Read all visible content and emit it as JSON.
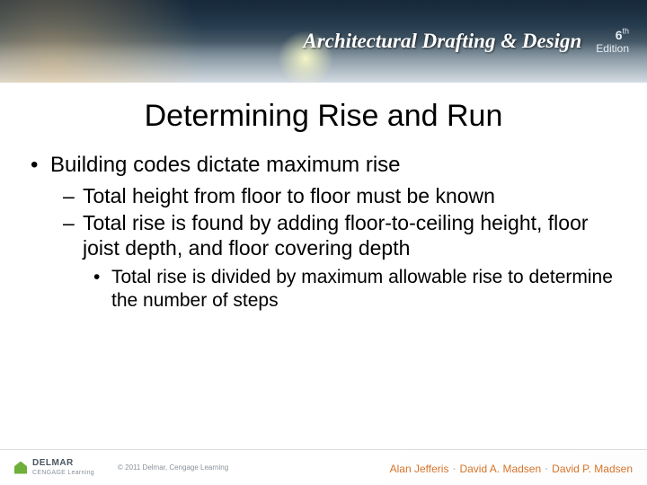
{
  "header": {
    "book_title": "Architectural Drafting & Design",
    "edition_number": "6",
    "edition_suffix": "th",
    "edition_label": "Edition"
  },
  "slide": {
    "title": "Determining Rise and Run",
    "bullet1": "Building codes dictate maximum rise",
    "sub1": "Total height from floor to floor must be known",
    "sub2": "Total rise is found by adding floor-to-ceiling height, floor joist depth, and floor covering depth",
    "subsub1": "Total rise is divided by maximum allowable rise to determine the number of steps"
  },
  "footer": {
    "publisher_name": "DELMAR",
    "publisher_sub": "CENGAGE Learning",
    "copyright": "© 2011  Delmar, Cengage Learning",
    "author1": "Alan Jefferis",
    "author2": "David A. Madsen",
    "author3": "David P. Madsen"
  },
  "colors": {
    "title_text": "#000000",
    "body_text": "#000000",
    "author_text": "#d6732a",
    "footer_gray": "#8a929a",
    "delmar_green": "#6fb03a"
  }
}
